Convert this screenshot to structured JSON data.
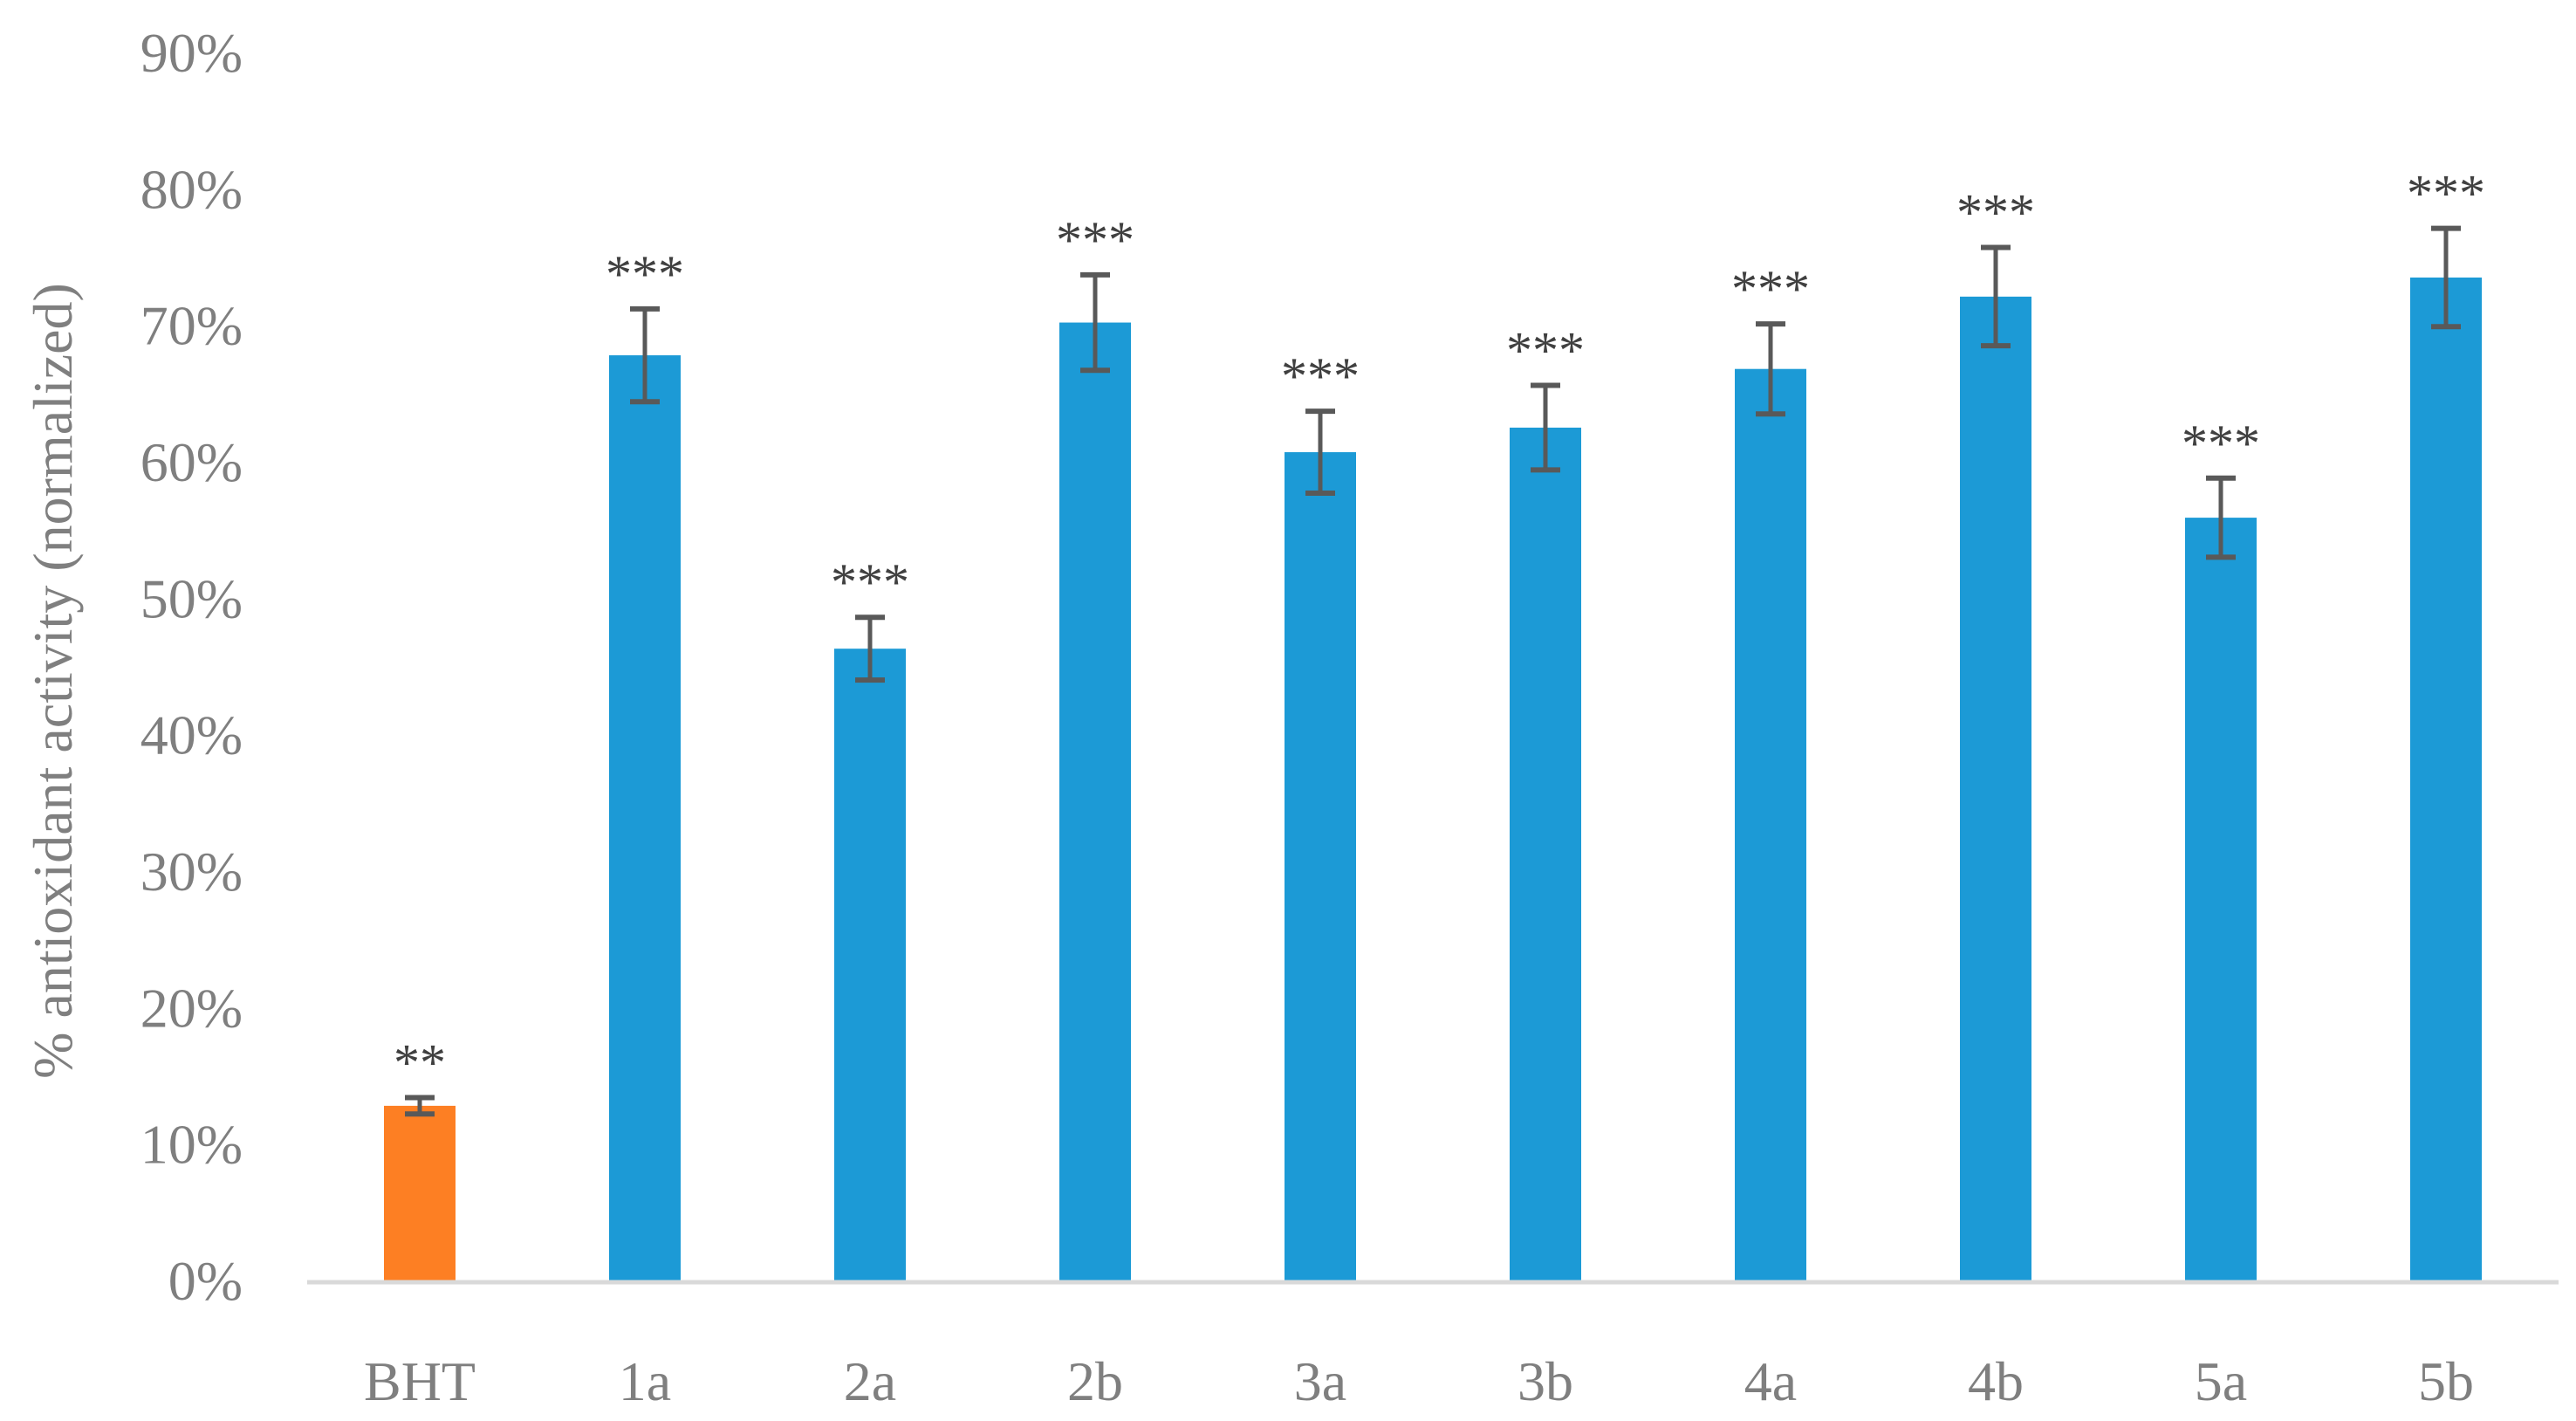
{
  "chart_data": {
    "type": "bar",
    "title": "",
    "xlabel": "",
    "ylabel": "% antioxidant activity (normalized)",
    "ylim": [
      0,
      90
    ],
    "yticks": [
      0,
      10,
      20,
      30,
      40,
      50,
      60,
      70,
      80,
      90
    ],
    "ytick_labels": [
      "0%",
      "10%",
      "20%",
      "30%",
      "40%",
      "50%",
      "60%",
      "70%",
      "80%",
      "90%"
    ],
    "grid": false,
    "legend": "none",
    "categories": [
      "BHT",
      "1a",
      "2a",
      "2b",
      "3a",
      "3b",
      "4a",
      "4b",
      "5a",
      "5b"
    ],
    "values": [
      12.8,
      67.8,
      46.3,
      70.2,
      60.7,
      62.5,
      66.8,
      72.1,
      55.9,
      73.5
    ],
    "errors": [
      0.6,
      3.4,
      2.3,
      3.5,
      3.0,
      3.1,
      3.3,
      3.6,
      2.9,
      3.6
    ],
    "significance": [
      "**",
      "***",
      "***",
      "***",
      "***",
      "***",
      "***",
      "***",
      "***",
      "***"
    ],
    "colors": [
      "#fd7f23",
      "#1c9ad6",
      "#1c9ad6",
      "#1c9ad6",
      "#1c9ad6",
      "#1c9ad6",
      "#1c9ad6",
      "#1c9ad6",
      "#1c9ad6",
      "#1c9ad6"
    ],
    "error_bar_color": "#595959",
    "axis_color": "#d9d9d9"
  }
}
